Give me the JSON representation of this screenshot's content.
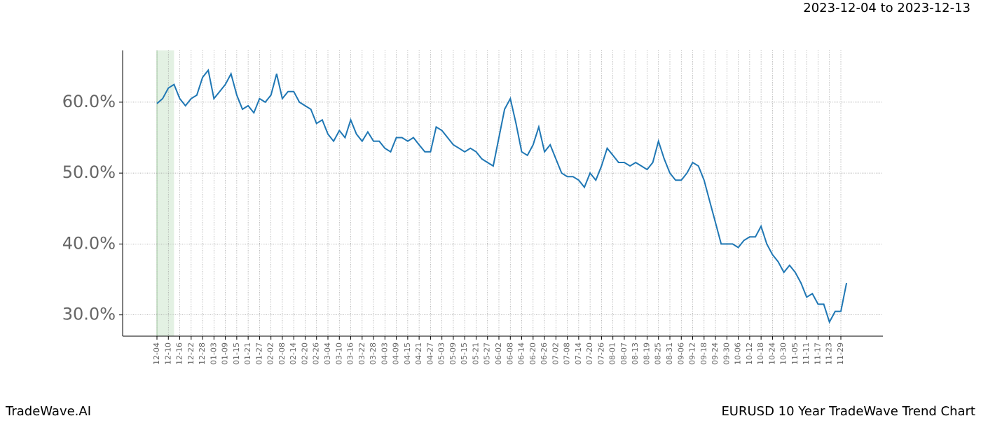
{
  "chart_data": {
    "type": "line",
    "title": "EURUSD 10 Year TradeWave Trend Chart",
    "subtitle": "2023-12-04 to 2023-12-13",
    "brand": "TradeWave.AI",
    "color": "#1f77b4",
    "highlight_range": [
      0,
      3
    ],
    "highlight_color": "#e3f1e3",
    "grid": true,
    "categories": [
      "12-04",
      null,
      "12-10",
      null,
      "12-16",
      null,
      "12-22",
      null,
      "12-28",
      null,
      "01-03",
      null,
      "01-09",
      null,
      "01-15",
      null,
      "01-21",
      null,
      "01-27",
      null,
      "02-02",
      null,
      "02-08",
      null,
      "02-14",
      null,
      "02-20",
      null,
      "02-26",
      null,
      "03-04",
      null,
      "03-10",
      null,
      "03-16",
      null,
      "03-22",
      null,
      "03-28",
      null,
      "04-03",
      null,
      "04-09",
      null,
      "04-15",
      null,
      "04-21",
      null,
      "04-27",
      null,
      "05-03",
      null,
      "05-09",
      null,
      "05-15",
      null,
      "05-21",
      null,
      "05-27",
      null,
      "06-02",
      null,
      "06-08",
      null,
      "06-14",
      null,
      "06-20",
      null,
      "06-26",
      null,
      "07-02",
      null,
      "07-08",
      null,
      "07-14",
      null,
      "07-20",
      null,
      "07-26",
      null,
      "08-01",
      null,
      "08-07",
      null,
      "08-13",
      null,
      "08-19",
      null,
      "08-25",
      null,
      "08-31",
      null,
      "09-06",
      null,
      "09-12",
      null,
      "09-18",
      null,
      "09-24",
      null,
      "09-30",
      null,
      "10-06",
      null,
      "10-12",
      null,
      "10-18",
      null,
      "10-24",
      null,
      "10-30",
      null,
      "11-05",
      null,
      "11-11",
      null,
      "11-17",
      null,
      "11-23",
      null,
      "11-29",
      null
    ],
    "values": [
      59.8,
      60.5,
      62.0,
      62.5,
      60.5,
      59.5,
      60.5,
      61.0,
      63.5,
      64.5,
      60.5,
      61.5,
      62.5,
      64.0,
      61.0,
      59.0,
      59.5,
      58.5,
      60.5,
      60.0,
      61.0,
      64.0,
      60.5,
      61.5,
      61.5,
      60.0,
      59.5,
      59.0,
      57.0,
      57.5,
      55.5,
      54.5,
      56.0,
      55.0,
      57.5,
      55.5,
      54.5,
      55.8,
      54.5,
      54.5,
      53.5,
      53.0,
      55.0,
      55.0,
      54.5,
      55.0,
      54.0,
      53.0,
      53.0,
      56.5,
      56.0,
      55.0,
      54.0,
      53.5,
      53.0,
      53.5,
      53.0,
      52.0,
      51.5,
      51.0,
      55.0,
      59.0,
      60.5,
      57.0,
      53.0,
      52.5,
      54.0,
      56.5,
      53.0,
      54.0,
      52.0,
      50.0,
      49.5,
      49.5,
      49.0,
      48.0,
      50.0,
      49.0,
      51.0,
      53.5,
      52.5,
      51.5,
      51.5,
      51.0,
      51.5,
      51.0,
      50.5,
      51.5,
      54.5,
      52.0,
      50.0,
      49.0,
      49.0,
      50.0,
      51.5,
      51.0,
      49.0,
      46.0,
      43.0,
      40.0,
      40.0,
      40.0,
      39.5,
      40.5,
      41.0,
      41.0,
      42.5,
      40.0,
      38.5,
      37.5,
      36.0,
      37.0,
      36.0,
      34.5,
      32.5,
      33.0,
      31.5,
      31.5,
      29.0,
      30.5,
      30.5,
      34.5
    ],
    "ylim": [
      27.0,
      67.3
    ],
    "yticks": [
      {
        "value": 30,
        "label": "30.0%"
      },
      {
        "value": 40,
        "label": "40.0%"
      },
      {
        "value": 50,
        "label": "50.0%"
      },
      {
        "value": 60,
        "label": "60.0%"
      }
    ]
  }
}
